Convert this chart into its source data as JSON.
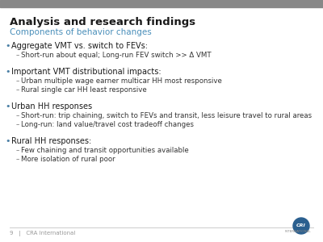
{
  "title": "Analysis and research findings",
  "subtitle": "Components of behavior changes",
  "title_color": "#1a1a1a",
  "subtitle_color": "#4a8fba",
  "background_color": "#ffffff",
  "top_bar_color": "#888888",
  "footer_text": "9   |   CRA International",
  "footer_color": "#999999",
  "bullet_color": "#4a7fa5",
  "dash_color": "#777777",
  "text_color": "#1a1a1a",
  "sub_text_color": "#333333",
  "bullet_symbol": "•",
  "dash_symbol": "–",
  "title_fontsize": 9.5,
  "subtitle_fontsize": 7.5,
  "bullet_fontsize": 7.0,
  "sub_fontsize": 6.2,
  "footer_fontsize": 5.0,
  "items": [
    {
      "bullet": "Aggregate VMT vs. switch to FEVs:",
      "subs": [
        "Short-run about equal; Long-run FEV switch >> Δ VMT"
      ]
    },
    {
      "bullet": "Important VMT distributional impacts:",
      "subs": [
        "Urban multiple wage earner multicar HH most responsive",
        "Rural single car HH least responsive"
      ]
    },
    {
      "bullet": "Urban HH responses",
      "subs": [
        "Short-run: trip chaining, switch to FEVs and transit, less leisure travel to rural areas",
        "Long-run: land value/travel cost tradeoff changes"
      ]
    },
    {
      "bullet": "Rural HH responses:",
      "subs": [
        "Few chaining and transit opportunities available",
        "More isolation of rural poor"
      ]
    }
  ]
}
